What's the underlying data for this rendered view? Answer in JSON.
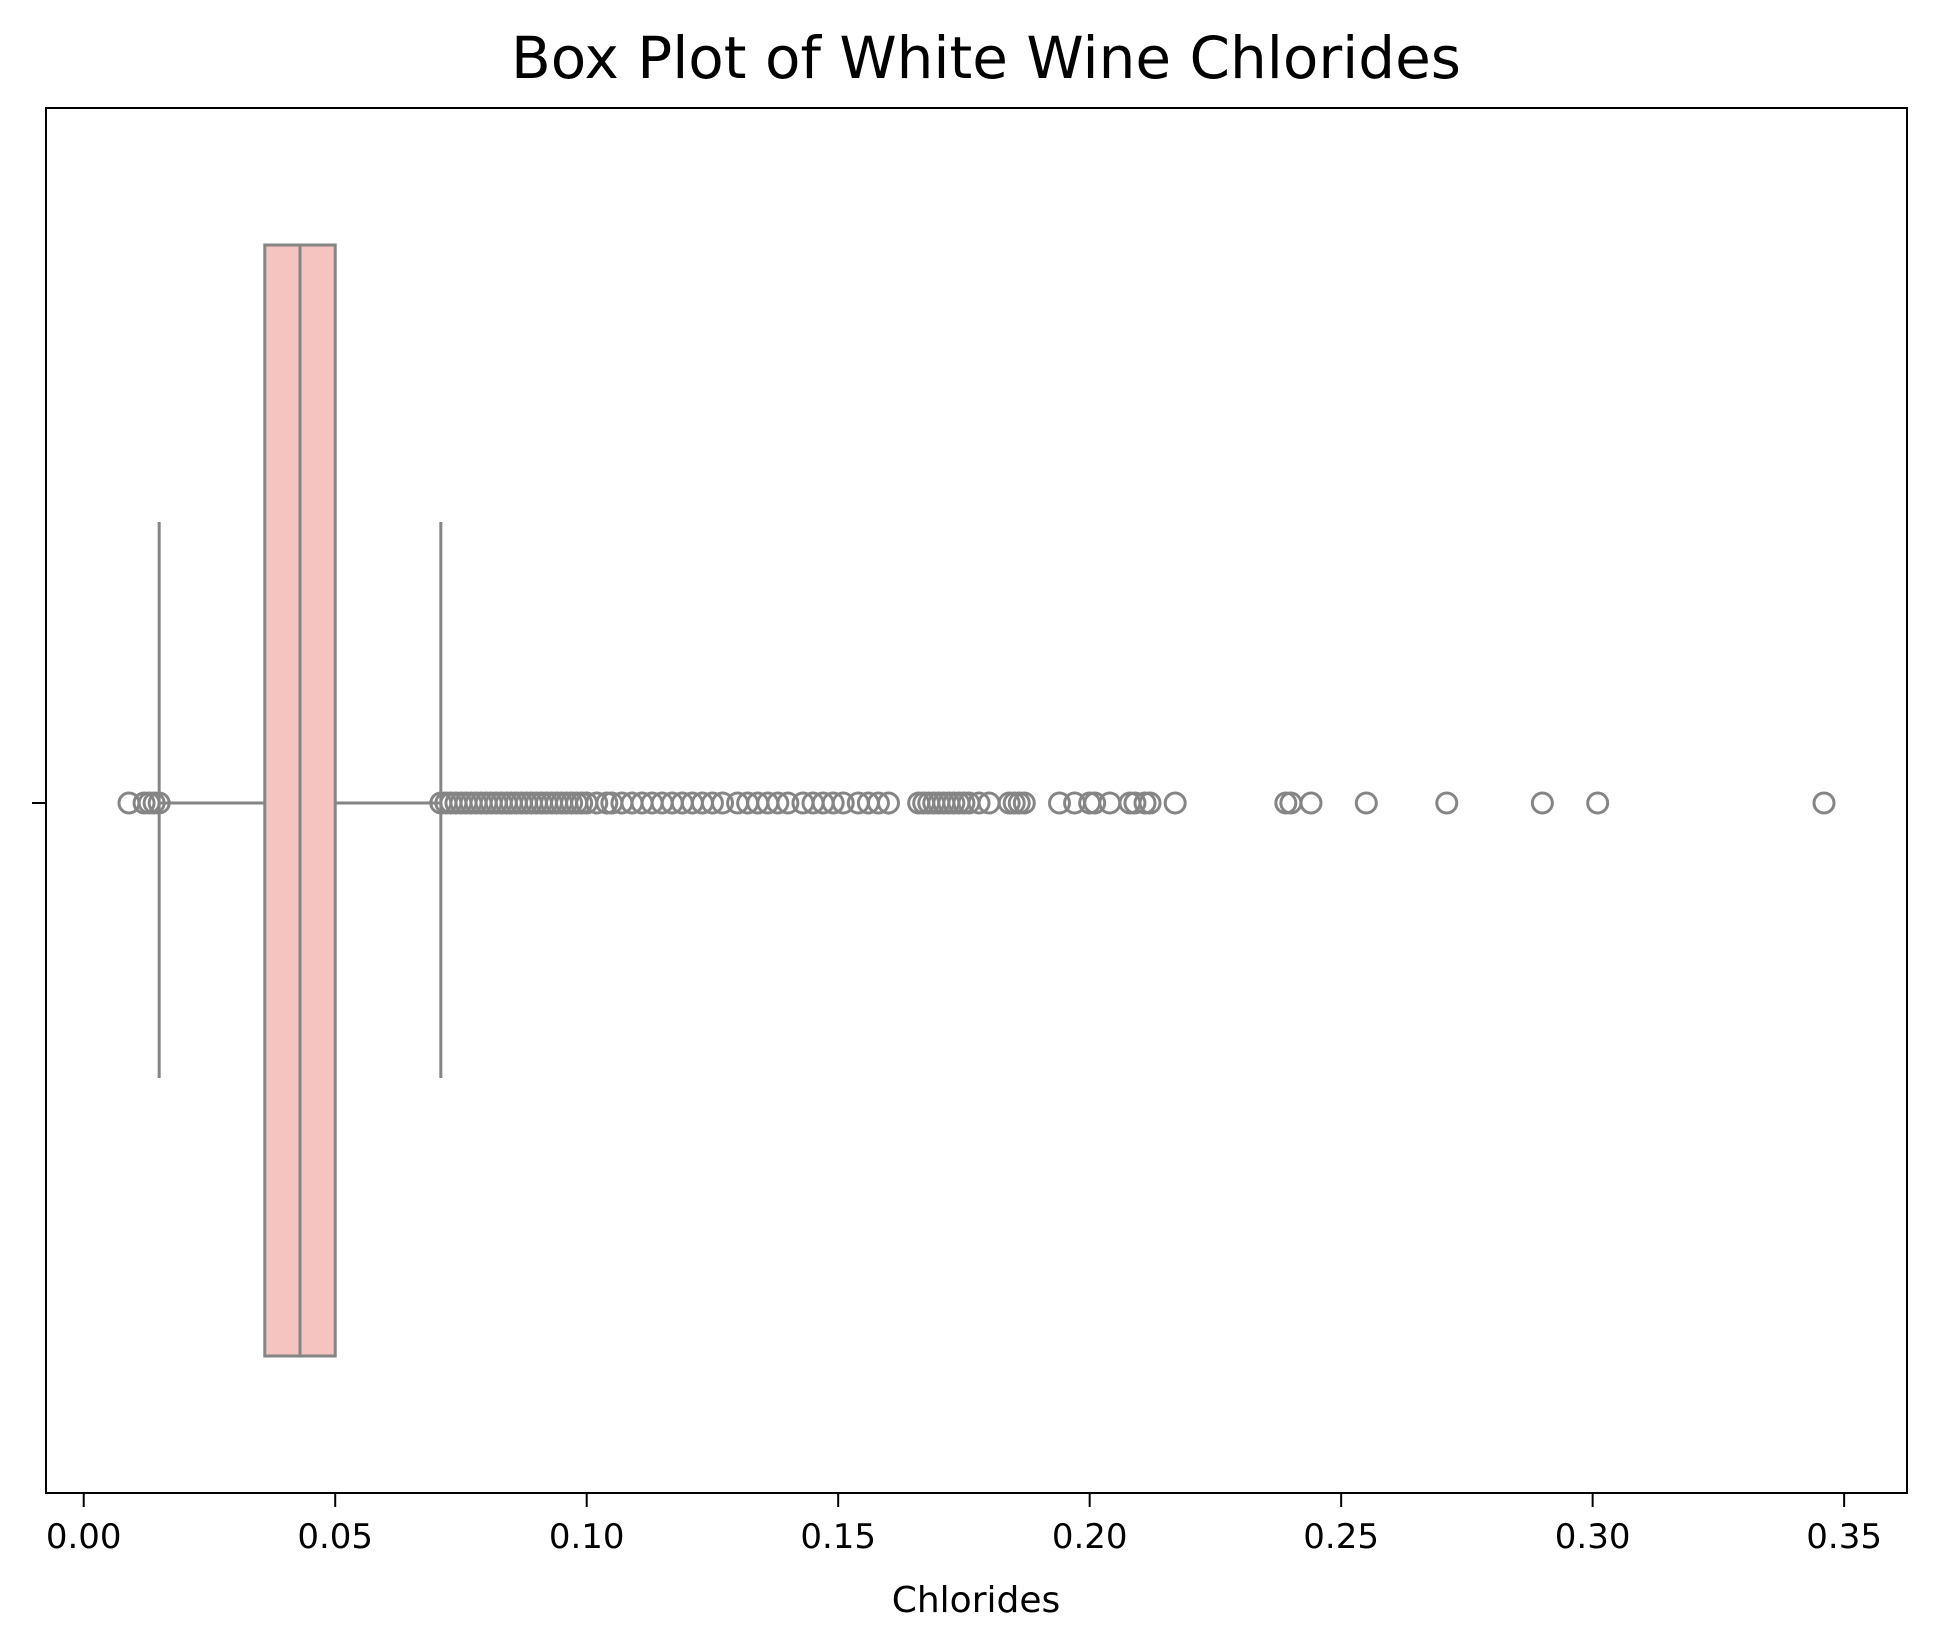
{
  "chart_data": {
    "type": "box",
    "title": "Box Plot of White Wine Chlorides",
    "xlabel": "Chlorides",
    "ylabel": "",
    "orientation": "horizontal",
    "xlim": [
      -0.0075,
      0.3625
    ],
    "xticks": [
      "0.00",
      "0.05",
      "0.10",
      "0.15",
      "0.20",
      "0.25",
      "0.30",
      "0.35"
    ],
    "grid": false,
    "colors": {
      "box_fill": "#f5c4c0",
      "line": "#858585",
      "axes": "#000000"
    },
    "box": {
      "whisker_low": 0.015,
      "q1": 0.036,
      "median": 0.043,
      "q3": 0.05,
      "whisker_high": 0.071
    },
    "outliers": [
      0.009,
      0.012,
      0.013,
      0.014,
      0.015,
      0.071,
      0.072,
      0.073,
      0.074,
      0.075,
      0.076,
      0.077,
      0.078,
      0.079,
      0.08,
      0.081,
      0.082,
      0.083,
      0.084,
      0.085,
      0.086,
      0.087,
      0.088,
      0.089,
      0.09,
      0.091,
      0.092,
      0.093,
      0.094,
      0.095,
      0.096,
      0.097,
      0.098,
      0.099,
      0.1,
      0.102,
      0.104,
      0.105,
      0.107,
      0.109,
      0.111,
      0.113,
      0.115,
      0.117,
      0.119,
      0.121,
      0.123,
      0.125,
      0.127,
      0.13,
      0.132,
      0.134,
      0.136,
      0.138,
      0.14,
      0.143,
      0.145,
      0.147,
      0.149,
      0.151,
      0.154,
      0.156,
      0.158,
      0.16,
      0.166,
      0.167,
      0.168,
      0.169,
      0.17,
      0.171,
      0.172,
      0.173,
      0.174,
      0.175,
      0.176,
      0.178,
      0.18,
      0.184,
      0.185,
      0.186,
      0.187,
      0.194,
      0.197,
      0.2,
      0.201,
      0.204,
      0.208,
      0.209,
      0.211,
      0.212,
      0.217,
      0.239,
      0.24,
      0.244,
      0.255,
      0.271,
      0.29,
      0.301,
      0.346
    ]
  }
}
